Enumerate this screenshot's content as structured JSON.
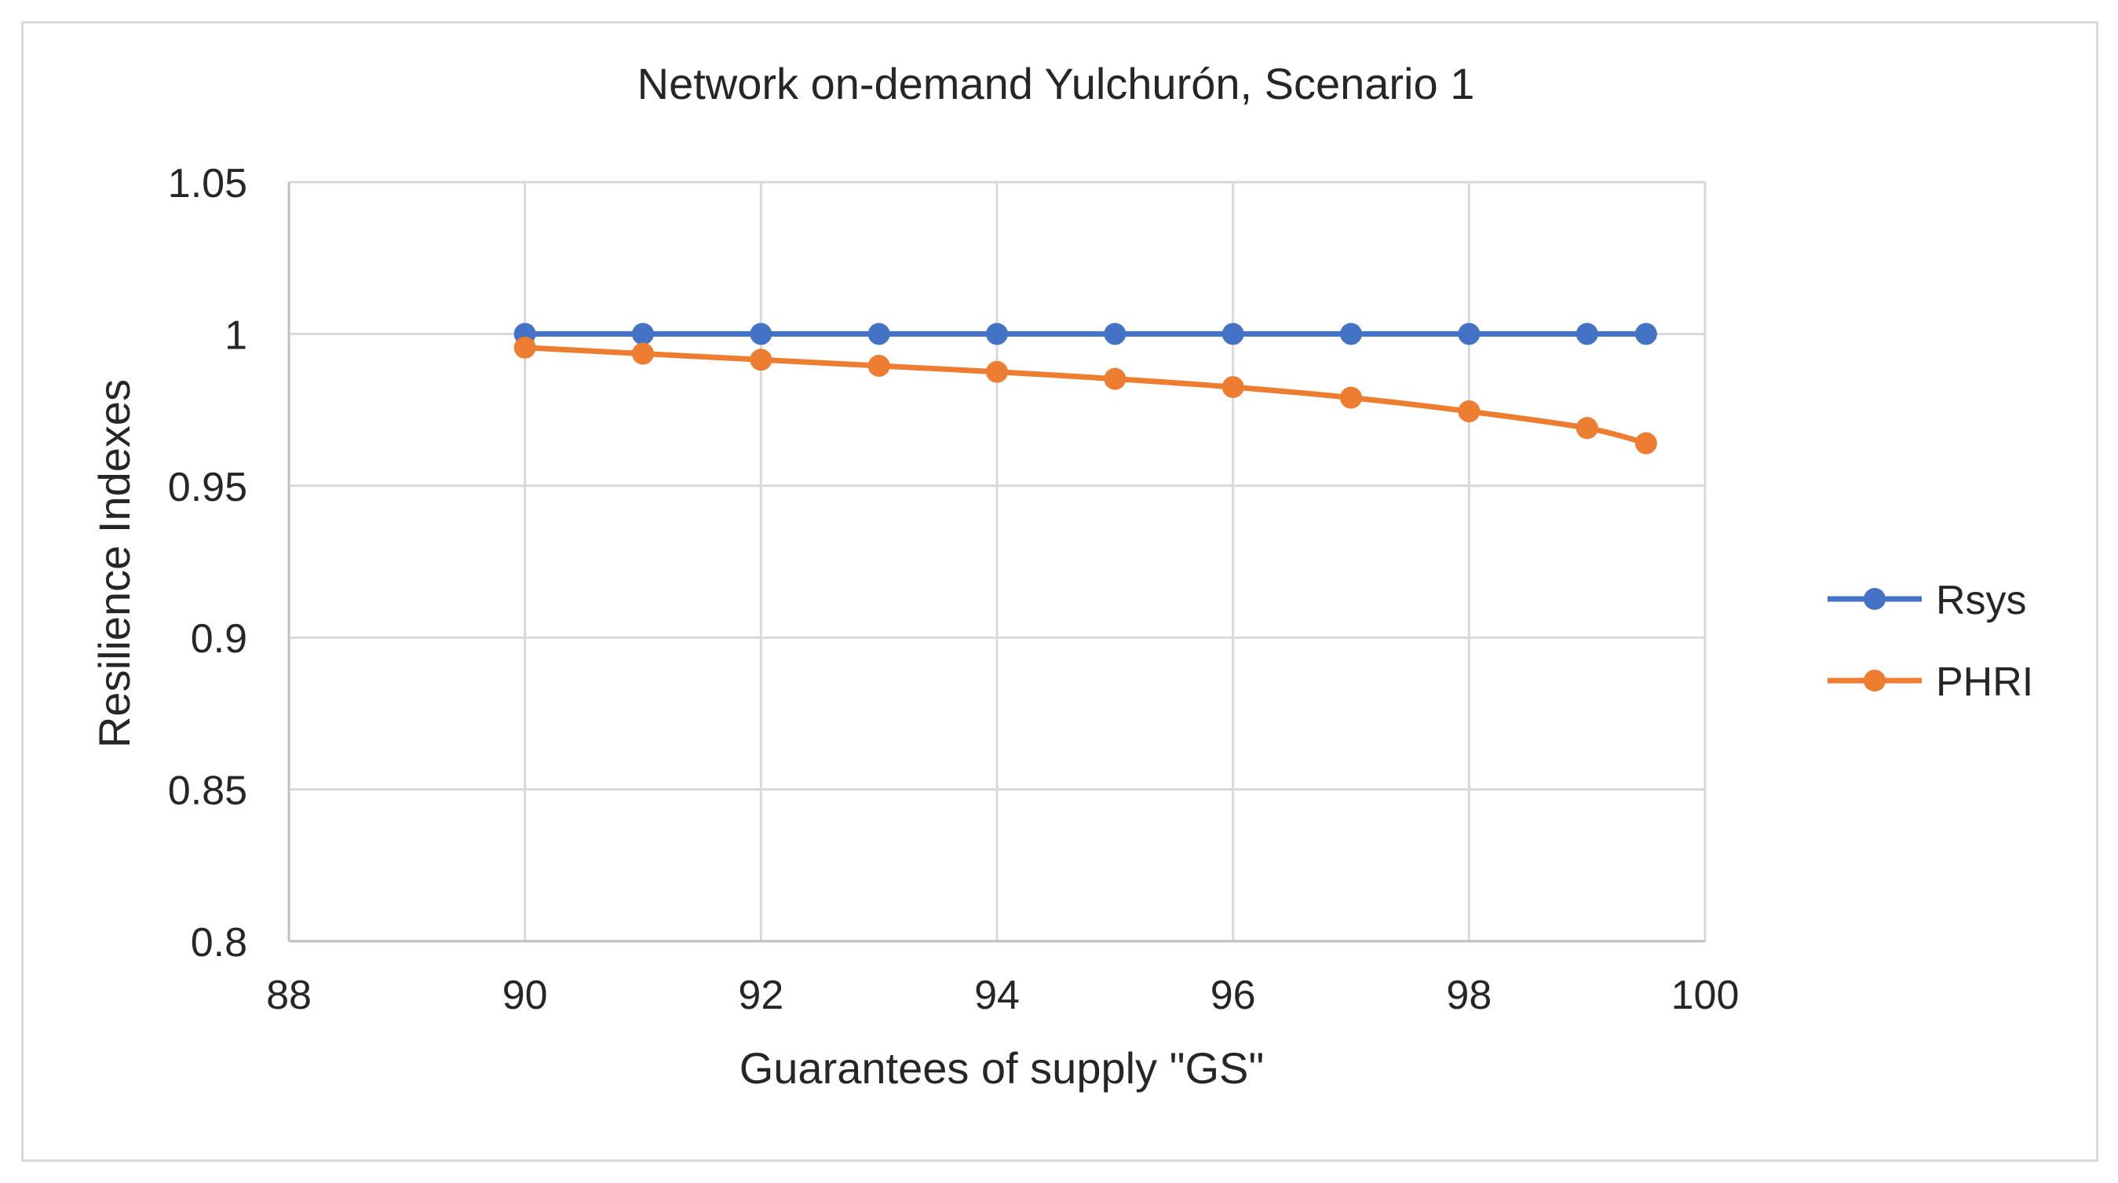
{
  "chart_data": {
    "type": "line",
    "title": "Network on-demand Yulchurón, Scenario 1",
    "xlabel": "Guarantees of supply \"GS\"",
    "ylabel": "Resilience Indexes",
    "xlim": [
      88,
      100
    ],
    "ylim": [
      0.8,
      1.05
    ],
    "x_ticks": [
      88,
      90,
      92,
      94,
      96,
      98,
      100
    ],
    "y_ticks": [
      0.8,
      0.85,
      0.9,
      0.95,
      1,
      1.05
    ],
    "x_tick_labels": [
      "88",
      "90",
      "92",
      "94",
      "96",
      "98",
      "100"
    ],
    "y_tick_labels": [
      "0.8",
      "0.85",
      "0.9",
      "0.95",
      "1",
      "1.05"
    ],
    "grid": true,
    "legend_position": "right",
    "x": [
      90,
      91,
      92,
      93,
      94,
      95,
      96,
      97,
      98,
      99,
      99.5
    ],
    "series": [
      {
        "name": "Rsys",
        "color": "#4472c4",
        "values": [
          1,
          1,
          1,
          1,
          1,
          1,
          1,
          1,
          1,
          1,
          1
        ]
      },
      {
        "name": "PHRI",
        "color": "#ed7d31",
        "values": [
          0.9955,
          0.9935,
          0.9915,
          0.9895,
          0.9875,
          0.9852,
          0.9825,
          0.979,
          0.9745,
          0.969,
          0.964
        ]
      }
    ]
  }
}
